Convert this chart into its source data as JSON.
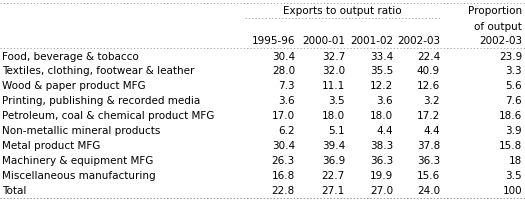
{
  "header_group": "Exports to output ratio",
  "prop_header_line1": "Proportion",
  "prop_header_line2": "of output",
  "col_headers": [
    "1995-96",
    "2000-01",
    "2001-02",
    "2002-03",
    "2002-03"
  ],
  "rows": [
    [
      "Food, beverage & tobacco",
      "30.4",
      "32.7",
      "33.4",
      "22.4",
      "23.9"
    ],
    [
      "Textiles, clothing, footwear & leather",
      "28.0",
      "32.0",
      "35.5",
      "40.9",
      "3.3"
    ],
    [
      "Wood & paper product MFG",
      "7.3",
      "11.1",
      "12.2",
      "12.6",
      "5.6"
    ],
    [
      "Printing, publishing & recorded media",
      "3.6",
      "3.5",
      "3.6",
      "3.2",
      "7.6"
    ],
    [
      "Petroleum, coal & chemical product MFG",
      "17.0",
      "18.0",
      "18.0",
      "17.2",
      "18.6"
    ],
    [
      "Non-metallic mineral products",
      "6.2",
      "5.1",
      "4.4",
      "4.4",
      "3.9"
    ],
    [
      "Metal product MFG",
      "30.4",
      "39.4",
      "38.3",
      "37.8",
      "15.8"
    ],
    [
      "Machinery & equipment MFG",
      "26.3",
      "36.9",
      "36.3",
      "36.3",
      "18"
    ],
    [
      "Miscellaneous manufacturing",
      "16.8",
      "22.7",
      "19.9",
      "15.6",
      "3.5"
    ],
    [
      "Total",
      "22.8",
      "27.1",
      "27.0",
      "24.0",
      "100"
    ]
  ],
  "bg_color": "#ffffff",
  "text_color": "#000000",
  "line_color": "#999999",
  "font_size": 7.5,
  "font_family": "DejaVu Sans"
}
